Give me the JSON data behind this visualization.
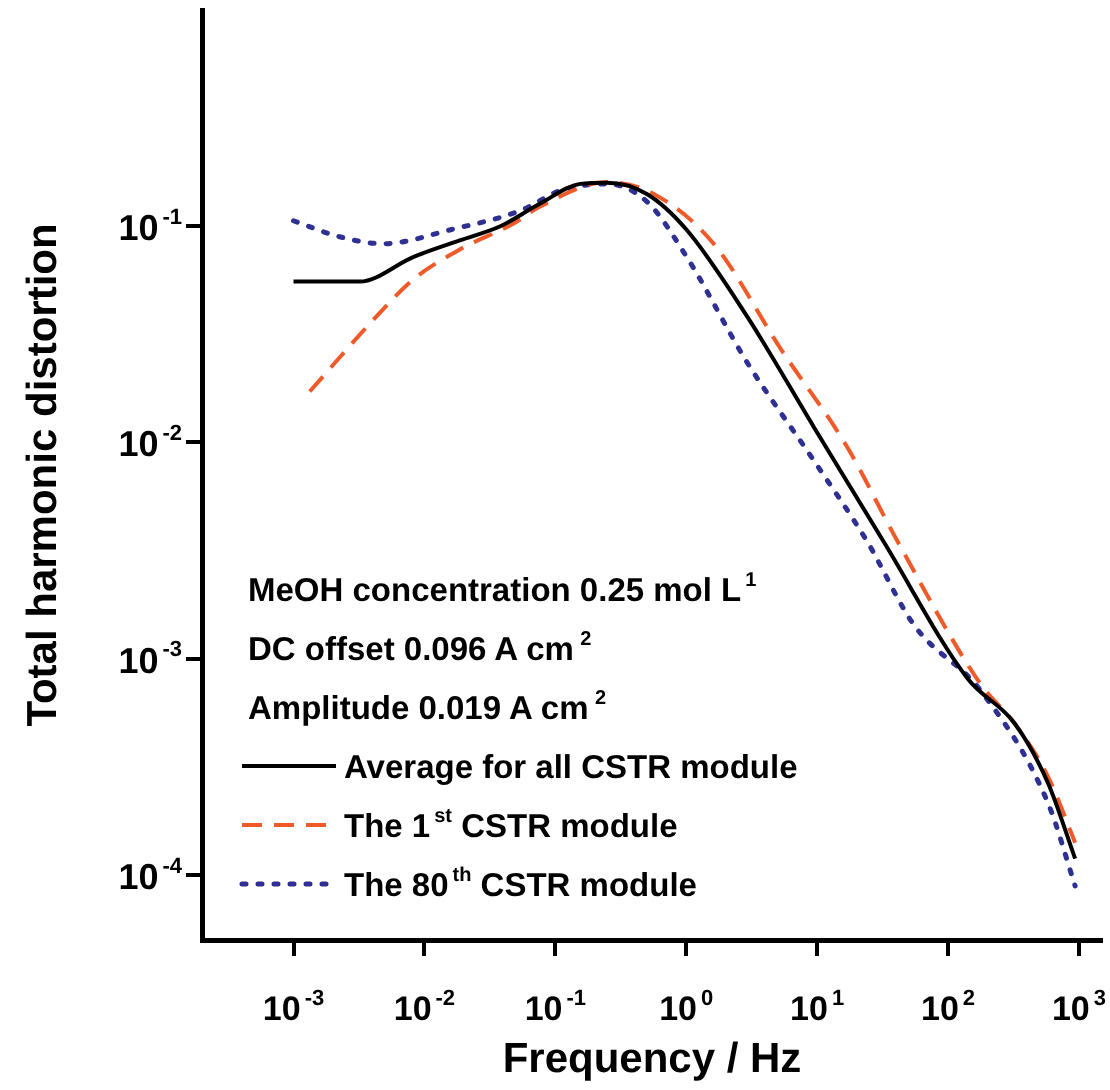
{
  "chart_data": {
    "type": "line",
    "xlabel": "Frequency / Hz",
    "ylabel": "Total harmonic distortion",
    "log": "xy",
    "xlim": [
      0.0002,
      1500
    ],
    "ylim": [
      5e-05,
      1
    ],
    "xticks": [
      {
        "value": 0.001,
        "label": "10$^{-3}$"
      },
      {
        "value": 0.01,
        "label": "10$^{-2}$"
      },
      {
        "value": 0.1,
        "label": "10$^{-1}$"
      },
      {
        "value": 1,
        "label": "10$^{0}$"
      },
      {
        "value": 10,
        "label": "10$^{1}$"
      },
      {
        "value": 100,
        "label": "10$^{2}$"
      },
      {
        "value": 1000,
        "label": "10$^{3}$"
      }
    ],
    "yticks": [
      {
        "value": 0.0001,
        "label": "10$^{-4}$"
      },
      {
        "value": 0.001,
        "label": "10$^{-3}$"
      },
      {
        "value": 0.01,
        "label": "10$^{-2}$"
      },
      {
        "value": 0.1,
        "label": "10$^{-1}$"
      }
    ],
    "annotations": [
      "MeOH concentration 0.25 mol L$^{1}$",
      "DC offset 0.096 A cm$^{2}$",
      "Amplitude 0.019 A cm$^{2}$"
    ],
    "legend": "bottom left",
    "marker": "none",
    "series": [
      {
        "name": "Average for all CSTR module",
        "color": "#000000",
        "line_style": "solid",
        "x": [
          0.001,
          0.0032,
          0.0082,
          0.0186,
          0.038,
          0.076,
          0.155,
          0.248,
          0.5,
          1.01,
          2.9,
          9.5,
          32,
          141,
          324,
          580,
          935
        ],
        "values": [
          0.0555,
          0.0555,
          0.072,
          0.086,
          0.1,
          0.127,
          0.157,
          0.159,
          0.141,
          0.096,
          0.0385,
          0.0117,
          0.0035,
          0.00081,
          0.0005,
          0.000266,
          0.000119
        ]
      },
      {
        "name": "The 1$^{st}$ CSTR module",
        "color": "#f05a28",
        "line_style": "dashed",
        "x": [
          0.00133,
          0.0046,
          0.0082,
          0.0186,
          0.048,
          0.076,
          0.248,
          0.565,
          1.62,
          5.25,
          17,
          41,
          178,
          324,
          580,
          935
        ],
        "values": [
          0.0172,
          0.04,
          0.0567,
          0.078,
          0.103,
          0.123,
          0.16,
          0.141,
          0.083,
          0.0272,
          0.0095,
          0.0035,
          0.00076,
          0.0005,
          0.000285,
          0.000141
        ]
      },
      {
        "name": "The 80$^{th}$ CSTR module",
        "color": "#2e3192",
        "line_style": "dotted",
        "x": [
          0.001,
          0.00225,
          0.0048,
          0.0166,
          0.054,
          0.109,
          0.248,
          0.5,
          1.01,
          2.9,
          9.5,
          24,
          55,
          178,
          580,
          935
        ],
        "values": [
          0.106,
          0.0894,
          0.083,
          0.097,
          0.118,
          0.146,
          0.157,
          0.13,
          0.072,
          0.0236,
          0.0082,
          0.0035,
          0.00143,
          0.00071,
          0.000215,
          8.9e-05
        ]
      }
    ]
  }
}
